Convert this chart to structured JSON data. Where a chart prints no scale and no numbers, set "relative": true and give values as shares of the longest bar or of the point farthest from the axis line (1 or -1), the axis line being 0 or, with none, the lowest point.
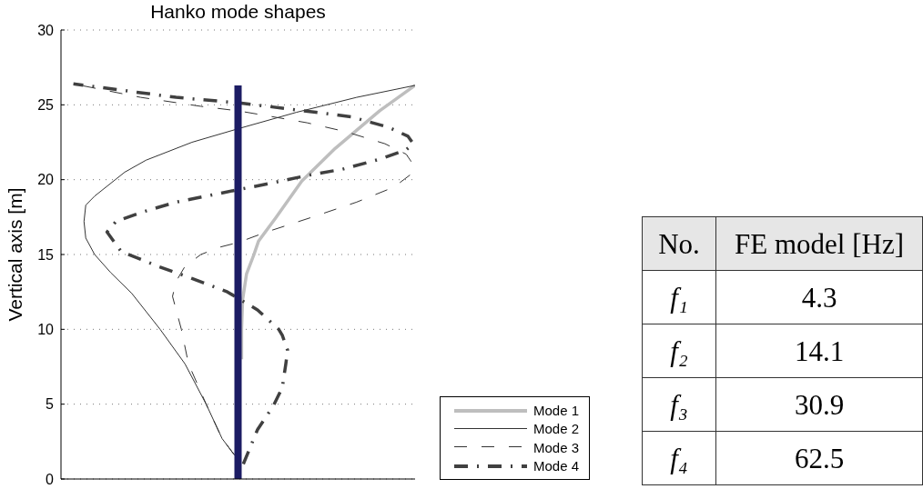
{
  "chart_data": [
    {
      "type": "line",
      "orientation": "horizontal",
      "relative": true,
      "title": "Hanko mode shapes",
      "ylabel": "Vertical axis [m]",
      "ylim": [
        0,
        30
      ],
      "yticks": [
        0,
        5,
        10,
        15,
        20,
        25,
        30
      ],
      "grid": "y",
      "legend": "bottom right",
      "tick_labels": "y",
      "series": [
        {
          "name": "Mode 1",
          "color": "#bebebe",
          "line_style": "solid",
          "x": [
            8,
            10,
            12,
            13.7,
            15,
            15.9,
            17.4,
            19.9,
            22.1,
            24.6,
            26.3
          ],
          "values": [
            0.51,
            0.51,
            0.513,
            0.524,
            0.545,
            0.558,
            0.605,
            0.68,
            0.775,
            0.9,
            1
          ]
        },
        {
          "name": "Mode 2",
          "color": "#333333",
          "line_style": "solid",
          "x": [
            1.6,
            2.7,
            5,
            7.7,
            10,
            12.4,
            13.8,
            15,
            16.1,
            17.2,
            18.3,
            18.9,
            20.5,
            21.3,
            22.5,
            23.4,
            24.5,
            25.5,
            26.3
          ],
          "values": [
            0.49,
            0.455,
            0.41,
            0.35,
            0.28,
            0.2,
            0.14,
            0.095,
            0.07,
            0.065,
            0.07,
            0.095,
            0.18,
            0.24,
            0.37,
            0.5,
            0.665,
            0.835,
            1
          ]
        },
        {
          "name": "Mode 3",
          "color": "#333333",
          "line_style": "dashed",
          "x": [
            1.6,
            2.7,
            5,
            7.7,
            10,
            12.2,
            13.2,
            14.2,
            15,
            15.5,
            15.8,
            16.5,
            17.5,
            18.5,
            19.5,
            20.3,
            21,
            21.7,
            22.4,
            23.2,
            23.8,
            24.3,
            24.6,
            24.9,
            25.5,
            26.4
          ],
          "values": [
            0.49,
            0.455,
            0.41,
            0.36,
            0.34,
            0.315,
            0.325,
            0.35,
            0.395,
            0.45,
            0.5,
            0.58,
            0.71,
            0.835,
            0.94,
            0.985,
            0.995,
            0.975,
            0.915,
            0.805,
            0.695,
            0.575,
            0.5,
            0.395,
            0.225,
            0.035
          ]
        },
        {
          "name": "Mode 4",
          "color": "#404040",
          "line_style": "dashdot",
          "x": [
            1,
            3.3,
            4.9,
            6.1,
            7.7,
            8.6,
            9.6,
            10,
            11.3,
            12.5,
            13.4,
            14.2,
            15.2,
            16.5,
            17.2,
            17.8,
            18.5,
            18.9,
            19.4,
            19.8,
            20.3,
            20.7,
            21.4,
            22,
            22.4,
            22.9,
            23.5,
            24.2,
            24.5,
            25.1,
            25.5,
            26.4
          ],
          "values": [
            0.515,
            0.555,
            0.6,
            0.625,
            0.635,
            0.64,
            0.625,
            0.615,
            0.555,
            0.47,
            0.37,
            0.275,
            0.17,
            0.13,
            0.155,
            0.225,
            0.325,
            0.41,
            0.515,
            0.6,
            0.7,
            0.795,
            0.905,
            0.975,
            0.995,
            0.98,
            0.925,
            0.82,
            0.72,
            0.515,
            0.325,
            0.035
          ]
        },
        {
          "color": "#1c1c64",
          "x": [
            0,
            26.3
          ],
          "values": [
            0.5,
            0.5
          ]
        }
      ]
    },
    {
      "type": "other",
      "xlabel": "No.",
      "ylabel": "FE model [Hz]",
      "categories": [
        "f₁",
        "f₂",
        "f₃",
        "f₄"
      ],
      "values": [
        4.3,
        14.1,
        30.9,
        62.5
      ],
      "data_labels": true
    }
  ]
}
